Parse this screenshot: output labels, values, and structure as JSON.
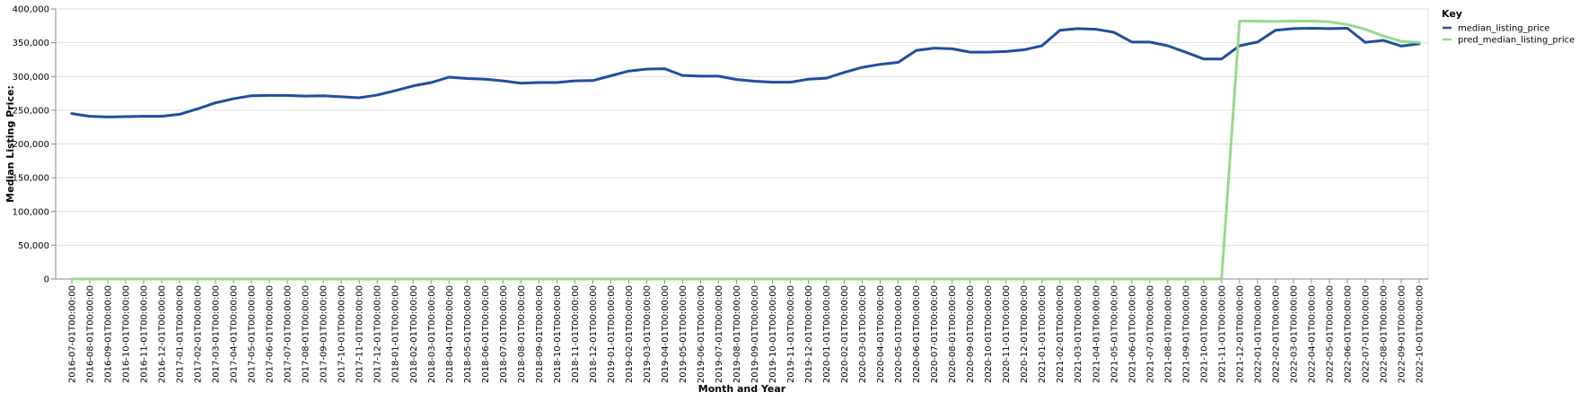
{
  "chart_data": {
    "type": "line",
    "xlabel": "Month and Year",
    "ylabel": "Median Listing Price:",
    "ylim": [
      0,
      400000
    ],
    "yticks": [
      0,
      50000,
      100000,
      150000,
      200000,
      250000,
      300000,
      350000,
      400000
    ],
    "ytick_labels": [
      "0",
      "50,000",
      "100,000",
      "150,000",
      "200,000",
      "250,000",
      "300,000",
      "350,000",
      "400,000"
    ],
    "grid": true,
    "legend": {
      "title": "Key",
      "placement": "top-right"
    },
    "x": [
      "2016-07-01T00:00:00",
      "2016-08-01T00:00:00",
      "2016-09-01T00:00:00",
      "2016-10-01T00:00:00",
      "2016-11-01T00:00:00",
      "2016-12-01T00:00:00",
      "2017-01-01T00:00:00",
      "2017-02-01T00:00:00",
      "2017-03-01T00:00:00",
      "2017-04-01T00:00:00",
      "2017-05-01T00:00:00",
      "2017-06-01T00:00:00",
      "2017-07-01T00:00:00",
      "2017-08-01T00:00:00",
      "2017-09-01T00:00:00",
      "2017-10-01T00:00:00",
      "2017-11-01T00:00:00",
      "2017-12-01T00:00:00",
      "2018-01-01T00:00:00",
      "2018-02-01T00:00:00",
      "2018-03-01T00:00:00",
      "2018-04-01T00:00:00",
      "2018-05-01T00:00:00",
      "2018-06-01T00:00:00",
      "2018-07-01T00:00:00",
      "2018-08-01T00:00:00",
      "2018-09-01T00:00:00",
      "2018-10-01T00:00:00",
      "2018-11-01T00:00:00",
      "2018-12-01T00:00:00",
      "2019-01-01T00:00:00",
      "2019-02-01T00:00:00",
      "2019-03-01T00:00:00",
      "2019-04-01T00:00:00",
      "2019-05-01T00:00:00",
      "2019-06-01T00:00:00",
      "2019-07-01T00:00:00",
      "2019-08-01T00:00:00",
      "2019-09-01T00:00:00",
      "2019-10-01T00:00:00",
      "2019-11-01T00:00:00",
      "2019-12-01T00:00:00",
      "2020-01-01T00:00:00",
      "2020-02-01T00:00:00",
      "2020-03-01T00:00:00",
      "2020-04-01T00:00:00",
      "2020-05-01T00:00:00",
      "2020-06-01T00:00:00",
      "2020-07-01T00:00:00",
      "2020-08-01T00:00:00",
      "2020-09-01T00:00:00",
      "2020-10-01T00:00:00",
      "2020-11-01T00:00:00",
      "2020-12-01T00:00:00",
      "2021-01-01T00:00:00",
      "2021-02-01T00:00:00",
      "2021-03-01T00:00:00",
      "2021-04-01T00:00:00",
      "2021-05-01T00:00:00",
      "2021-06-01T00:00:00",
      "2021-07-01T00:00:00",
      "2021-08-01T00:00:00",
      "2021-09-01T00:00:00",
      "2021-10-01T00:00:00",
      "2021-11-01T00:00:00",
      "2021-12-01T00:00:00",
      "2022-01-01T00:00:00",
      "2022-02-01T00:00:00",
      "2022-03-01T00:00:00",
      "2022-04-01T00:00:00",
      "2022-05-01T00:00:00",
      "2022-06-01T00:00:00",
      "2022-07-01T00:00:00",
      "2022-08-01T00:00:00",
      "2022-09-01T00:00:00",
      "2022-10-01T00:00:00"
    ],
    "series": [
      {
        "name": "median_listing_price",
        "color": "#1f4e9c",
        "values": [
          245000,
          241000,
          240000,
          240500,
          241000,
          241000,
          244000,
          252000,
          261000,
          267000,
          271500,
          272000,
          272000,
          271000,
          271500,
          270000,
          268500,
          272500,
          279000,
          286000,
          291000,
          299000,
          297000,
          296000,
          293500,
          290000,
          291000,
          291000,
          293500,
          294000,
          301000,
          308000,
          311000,
          311500,
          301500,
          300500,
          300500,
          295500,
          293000,
          291500,
          291500,
          296000,
          297500,
          306000,
          313500,
          318000,
          321000,
          338500,
          342000,
          341000,
          336000,
          336000,
          337000,
          339500,
          345500,
          368500,
          371000,
          370000,
          365500,
          351000,
          351000,
          345500,
          336000,
          326000,
          326000,
          345500,
          351000,
          368500,
          371000,
          371500,
          371000,
          371500,
          350500,
          353500,
          345000,
          348500
        ]
      },
      {
        "name": "pred_median_listing_price",
        "color": "#98d98e",
        "values": [
          0,
          0,
          0,
          0,
          0,
          0,
          0,
          0,
          0,
          0,
          0,
          0,
          0,
          0,
          0,
          0,
          0,
          0,
          0,
          0,
          0,
          0,
          0,
          0,
          0,
          0,
          0,
          0,
          0,
          0,
          0,
          0,
          0,
          0,
          0,
          0,
          0,
          0,
          0,
          0,
          0,
          0,
          0,
          0,
          0,
          0,
          0,
          0,
          0,
          0,
          0,
          0,
          0,
          0,
          0,
          0,
          0,
          0,
          0,
          0,
          0,
          0,
          0,
          0,
          0,
          382000,
          382000,
          381500,
          382000,
          382000,
          381000,
          377000,
          370000,
          360000,
          352000,
          350500
        ]
      }
    ]
  }
}
